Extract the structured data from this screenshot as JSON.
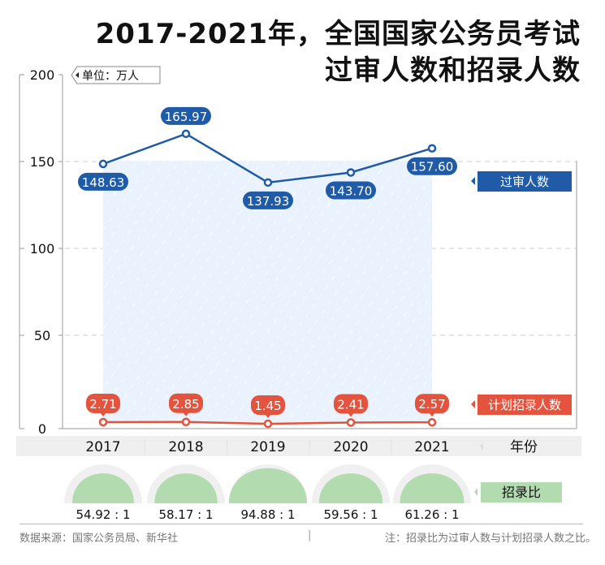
{
  "title": {
    "line1": "2017-2021年，全国国家公务员考试",
    "line2": "过审人数和招录人数"
  },
  "unit_label": "单位：万人",
  "legend": {
    "passed": {
      "label": "过审人数",
      "color": "#1f5ba7"
    },
    "planned": {
      "label": "计划招录人数",
      "color": "#e4533d"
    },
    "ratio": {
      "label": "招录比",
      "color": "#b3dbb0"
    }
  },
  "x_axis_label": "年份",
  "footer": {
    "source": "数据来源：国家公务员局、新华社",
    "separator": "|",
    "note": "注：招录比为过审人数与计划招录人数之比。"
  },
  "chart_data": {
    "type": "line",
    "title": "2017-2021年，全国国家公务员考试过审人数和招录人数",
    "xlabel": "年份",
    "ylabel": "单位：万人",
    "ylim": [
      0,
      200
    ],
    "yticks": [
      0,
      50,
      100,
      150,
      200
    ],
    "grid": true,
    "legend_position": "right",
    "categories": [
      "2017",
      "2018",
      "2019",
      "2020",
      "2021"
    ],
    "series": [
      {
        "name": "过审人数",
        "values": [
          148.63,
          165.97,
          137.93,
          143.7,
          157.6
        ],
        "labels": [
          "148.63",
          "165.97",
          "137.93",
          "143.70",
          "157.60"
        ]
      },
      {
        "name": "计划招录人数",
        "values": [
          2.71,
          2.85,
          1.45,
          2.41,
          2.57
        ],
        "labels": [
          "2.71",
          "2.85",
          "1.45",
          "2.41",
          "2.57"
        ]
      },
      {
        "name": "招录比",
        "values": [
          54.92,
          58.17,
          94.88,
          59.56,
          61.26
        ],
        "labels": [
          "54.92 : 1",
          "58.17 : 1",
          "94.88 : 1",
          "59.56 : 1",
          "61.26 : 1"
        ]
      }
    ]
  }
}
